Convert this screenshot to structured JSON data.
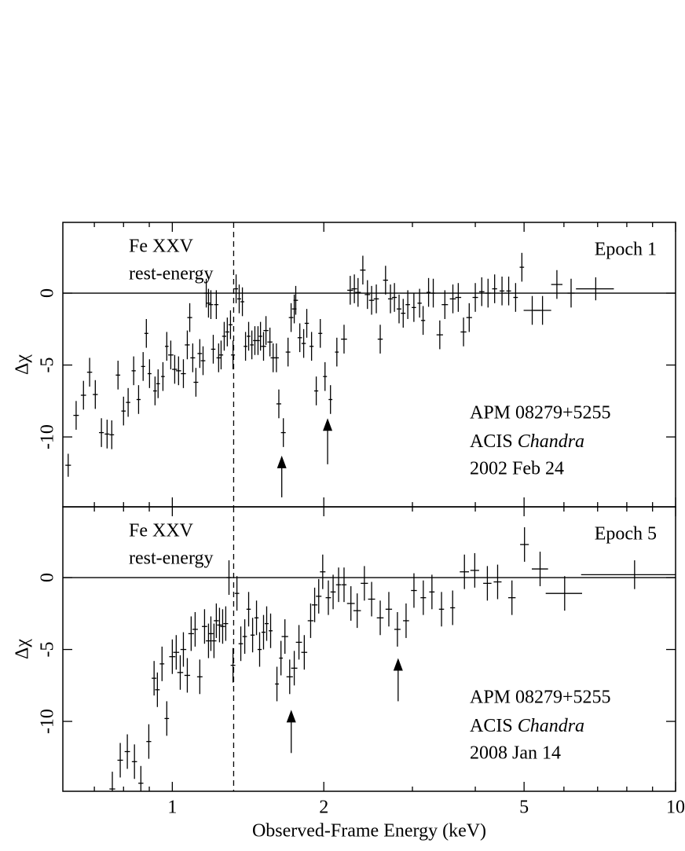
{
  "chart_data": [
    {
      "type": "errorbar",
      "ylabel": "Δχ",
      "xscale": "log",
      "xlim": [
        0.606,
        10
      ],
      "ylim": [
        -14.86,
        4.92
      ],
      "yticks": [
        -10,
        -5,
        0
      ],
      "color": "#000000",
      "fe_label": [
        "Fe XXV",
        "rest-energy"
      ],
      "vline": 1.324,
      "hline": 0,
      "epoch": "Epoch 1",
      "object": "APM 08279+5255",
      "instrument": "ACIS",
      "telescope": "Chandra",
      "date": "2002 Feb 24",
      "arrows": [
        {
          "x": 1.65,
          "tip": -11.3,
          "tail": -14.2
        },
        {
          "x": 2.035,
          "tip": -8.7,
          "tail": -11.9
        }
      ],
      "x": [
        0.621,
        0.644,
        0.666,
        0.685,
        0.703,
        0.723,
        0.742,
        0.758,
        0.78,
        0.8,
        0.817,
        0.838,
        0.857,
        0.875,
        0.888,
        0.901,
        0.924,
        0.937,
        0.958,
        0.975,
        0.993,
        1.011,
        1.029,
        1.052,
        1.071,
        1.083,
        1.098,
        1.114,
        1.134,
        1.151,
        1.168,
        1.18,
        1.193,
        1.206,
        1.223,
        1.236,
        1.25,
        1.268,
        1.286,
        1.305,
        1.32,
        1.339,
        1.358,
        1.378,
        1.398,
        1.418,
        1.439,
        1.459,
        1.48,
        1.497,
        1.518,
        1.535,
        1.563,
        1.586,
        1.61,
        1.628,
        1.662,
        1.698,
        1.722,
        1.747,
        1.759,
        1.792,
        1.824,
        1.85,
        1.891,
        1.932,
        1.968,
        2.011,
        2.062,
        2.123,
        2.194,
        2.257,
        2.3,
        2.339,
        2.391,
        2.442,
        2.489,
        2.543,
        2.589,
        2.653,
        2.713,
        2.763,
        2.822,
        2.876,
        2.937,
        3.02,
        3.1,
        3.15,
        3.23,
        3.3,
        3.4,
        3.48,
        3.61,
        3.7,
        3.79,
        3.89,
        4.0,
        4.12,
        4.24,
        4.37,
        4.52,
        4.66,
        4.81,
        4.95,
        5.19,
        5.44,
        5.81,
        6.2,
        6.94
      ],
      "values": [
        -11.97,
        -8.5,
        -7.1,
        -5.5,
        -7.05,
        -9.7,
        -9.8,
        -9.85,
        -5.7,
        -8.2,
        -7.6,
        -5.4,
        -7.4,
        -5.1,
        -2.8,
        -5.6,
        -6.8,
        -6.3,
        -5.8,
        -3.7,
        -4.3,
        -5.3,
        -5.4,
        -5.6,
        -3.6,
        -1.7,
        -4.5,
        -6.2,
        -4.2,
        -4.7,
        0.0,
        -0.7,
        -0.8,
        -3.9,
        -0.8,
        -4.5,
        -4.3,
        -3.0,
        -2.7,
        -2.2,
        -4.3,
        0.3,
        -0.4,
        -0.6,
        -3.7,
        -3.0,
        -3.6,
        -3.3,
        -3.3,
        -3.0,
        -3.7,
        -2.6,
        -3.4,
        -4.5,
        -4.5,
        -7.7,
        -9.7,
        -4.1,
        -1.7,
        -1.1,
        -0.5,
        -3.1,
        -3.5,
        -2.1,
        -3.7,
        -6.8,
        -2.8,
        -5.8,
        -7.4,
        -4.1,
        -3.2,
        0.2,
        0.3,
        0.05,
        1.6,
        -0.1,
        -0.5,
        -0.4,
        -3.2,
        0.9,
        -0.4,
        -0.3,
        -1.1,
        -1.4,
        -0.8,
        -1.0,
        -0.7,
        -1.9,
        0.05,
        0.0,
        -2.9,
        -0.8,
        -0.4,
        -0.3,
        -2.7,
        -1.7,
        -0.3,
        0.1,
        0.0,
        0.3,
        0.15,
        0.15,
        -0.3,
        1.8,
        -1.2,
        -1.2,
        0.6,
        0.0,
        0.3
      ],
      "xerr": [
        0.008,
        0.008,
        0.008,
        0.008,
        0.008,
        0.008,
        0.008,
        0.008,
        0.008,
        0.008,
        0.008,
        0.008,
        0.008,
        0.008,
        0.008,
        0.008,
        0.008,
        0.008,
        0.008,
        0.008,
        0.012,
        0.012,
        0.012,
        0.012,
        0.012,
        0.012,
        0.012,
        0.012,
        0.012,
        0.012,
        0.012,
        0.012,
        0.012,
        0.012,
        0.012,
        0.012,
        0.012,
        0.012,
        0.012,
        0.012,
        0.012,
        0.012,
        0.012,
        0.012,
        0.012,
        0.012,
        0.012,
        0.012,
        0.012,
        0.012,
        0.018,
        0.018,
        0.018,
        0.018,
        0.018,
        0.018,
        0.018,
        0.018,
        0.018,
        0.018,
        0.018,
        0.018,
        0.018,
        0.018,
        0.018,
        0.018,
        0.018,
        0.018,
        0.018,
        0.018,
        0.03,
        0.03,
        0.03,
        0.03,
        0.03,
        0.03,
        0.03,
        0.03,
        0.03,
        0.03,
        0.03,
        0.03,
        0.03,
        0.03,
        0.03,
        0.03,
        0.03,
        0.03,
        0.03,
        0.03,
        0.05,
        0.05,
        0.05,
        0.05,
        0.05,
        0.05,
        0.05,
        0.05,
        0.05,
        0.05,
        0.05,
        0.05,
        0.05,
        0.05,
        0.2,
        0.22,
        0.15,
        0.1,
        0.6
      ],
      "yerr": [
        0.8,
        1.0,
        1.0,
        1.0,
        1.0,
        1.0,
        1.0,
        1.0,
        1.0,
        1.0,
        1.0,
        1.0,
        1.0,
        1.0,
        1.0,
        1.0,
        1.0,
        1.0,
        1.0,
        1.0,
        1.0,
        1.0,
        1.0,
        1.0,
        1.0,
        1.0,
        1.0,
        1.0,
        1.0,
        1.0,
        1.0,
        1.0,
        1.0,
        1.0,
        1.0,
        1.0,
        1.0,
        1.0,
        1.0,
        1.0,
        1.0,
        1.0,
        1.0,
        1.0,
        1.0,
        1.0,
        1.0,
        1.0,
        1.0,
        1.0,
        1.0,
        1.0,
        1.0,
        1.0,
        1.0,
        1.0,
        1.0,
        1.0,
        1.0,
        1.0,
        1.0,
        1.0,
        1.0,
        1.0,
        1.0,
        1.0,
        1.0,
        1.0,
        1.0,
        1.0,
        1.0,
        1.0,
        1.0,
        1.0,
        1.0,
        1.0,
        1.0,
        1.0,
        1.0,
        1.0,
        1.0,
        1.0,
        1.0,
        1.0,
        1.0,
        1.0,
        1.0,
        1.0,
        1.0,
        1.0,
        1.0,
        1.0,
        1.0,
        1.0,
        1.0,
        1.0,
        1.0,
        1.0,
        1.0,
        1.0,
        1.0,
        1.0,
        1.0,
        1.0,
        1.0,
        1.0,
        1.0,
        1.0,
        0.8
      ]
    },
    {
      "type": "errorbar",
      "ylabel": "Δχ",
      "xlabel": "Observed-Frame Energy (keV)",
      "xscale": "log",
      "xlim": [
        0.606,
        10
      ],
      "ylim": [
        -14.86,
        4.92
      ],
      "yticks": [
        -10,
        -5,
        0
      ],
      "xticks": [
        1,
        2,
        5,
        10
      ],
      "xminorticks": [
        0.7,
        0.8,
        0.9,
        3,
        4,
        6,
        7,
        8,
        9
      ],
      "color": "#000000",
      "fe_label": [
        "Fe XXV",
        "rest-energy"
      ],
      "vline": 1.324,
      "hline": 0,
      "epoch": "Epoch 5",
      "object": "APM 08279+5255",
      "instrument": "ACIS",
      "telescope": "Chandra",
      "date": "2008 Jan 14",
      "arrows": [
        {
          "x": 1.723,
          "tip": -9.2,
          "tail": -12.2
        },
        {
          "x": 2.81,
          "tip": -5.6,
          "tail": -8.6
        }
      ],
      "x": [
        0.76,
        0.788,
        0.814,
        0.841,
        0.866,
        0.898,
        0.92,
        0.934,
        0.954,
        0.975,
        1.0,
        1.018,
        1.037,
        1.052,
        1.071,
        1.09,
        1.11,
        1.134,
        1.159,
        1.18,
        1.193,
        1.21,
        1.223,
        1.241,
        1.259,
        1.277,
        1.296,
        1.32,
        1.344,
        1.368,
        1.393,
        1.418,
        1.444,
        1.47,
        1.491,
        1.518,
        1.54,
        1.568,
        1.614,
        1.644,
        1.674,
        1.711,
        1.747,
        1.785,
        1.829,
        1.883,
        1.918,
        1.954,
        1.99,
        2.042,
        2.087,
        2.14,
        2.194,
        2.264,
        2.33,
        2.408,
        2.489,
        2.589,
        2.693,
        2.801,
        2.914,
        3.021,
        3.153,
        3.28,
        3.427,
        3.606,
        3.806,
        3.99,
        4.227,
        4.43,
        4.73,
        5.01,
        5.38,
        6.02,
        8.29
      ],
      "values": [
        -14.7,
        -12.7,
        -12.1,
        -12.8,
        -14.3,
        -11.4,
        -7.0,
        -7.8,
        -6.0,
        -9.8,
        -5.5,
        -5.2,
        -6.6,
        -5.0,
        -6.8,
        -3.9,
        -3.6,
        -6.9,
        -3.4,
        -4.4,
        -3.9,
        -4.4,
        -3.0,
        -3.3,
        -3.4,
        -3.2,
        0.0,
        -6.1,
        -1.1,
        -4.6,
        -4.1,
        -2.2,
        -4.0,
        -2.8,
        -5.0,
        -3.8,
        -3.2,
        -3.7,
        -7.4,
        -5.6,
        -4.1,
        -6.9,
        -6.3,
        -4.5,
        -5.2,
        -3.0,
        -1.9,
        -1.3,
        0.4,
        -1.4,
        -1.0,
        -0.5,
        -0.5,
        -1.8,
        -2.3,
        -0.4,
        -1.5,
        -2.8,
        -2.2,
        -3.6,
        -3.0,
        -0.9,
        -1.4,
        -1.0,
        -2.2,
        -2.1,
        0.4,
        0.5,
        -0.4,
        -0.3,
        -1.4,
        2.3,
        0.6,
        -1.1,
        0.2
      ],
      "xerr": [
        0.01,
        0.01,
        0.01,
        0.01,
        0.01,
        0.01,
        0.01,
        0.01,
        0.01,
        0.01,
        0.014,
        0.014,
        0.014,
        0.014,
        0.014,
        0.014,
        0.014,
        0.014,
        0.014,
        0.014,
        0.014,
        0.014,
        0.014,
        0.014,
        0.014,
        0.014,
        0.014,
        0.014,
        0.014,
        0.014,
        0.014,
        0.014,
        0.014,
        0.014,
        0.014,
        0.014,
        0.014,
        0.014,
        0.014,
        0.014,
        0.025,
        0.025,
        0.025,
        0.025,
        0.025,
        0.025,
        0.025,
        0.025,
        0.025,
        0.025,
        0.025,
        0.025,
        0.025,
        0.04,
        0.04,
        0.04,
        0.04,
        0.04,
        0.04,
        0.04,
        0.04,
        0.04,
        0.04,
        0.04,
        0.04,
        0.04,
        0.08,
        0.08,
        0.08,
        0.08,
        0.08,
        0.1,
        0.2,
        0.5,
        1.8
      ],
      "yerr": [
        1.2,
        1.2,
        1.2,
        1.2,
        1.2,
        1.2,
        1.2,
        1.2,
        1.2,
        1.2,
        1.2,
        1.2,
        1.2,
        1.2,
        1.2,
        1.2,
        1.2,
        1.2,
        1.2,
        1.2,
        1.2,
        1.2,
        1.2,
        1.2,
        1.2,
        1.2,
        1.2,
        1.2,
        1.2,
        1.2,
        1.2,
        1.2,
        1.2,
        1.2,
        1.2,
        1.2,
        1.2,
        1.2,
        1.2,
        1.2,
        1.2,
        1.2,
        1.2,
        1.2,
        1.2,
        1.2,
        1.2,
        1.2,
        1.2,
        1.2,
        1.2,
        1.2,
        1.2,
        1.2,
        1.2,
        1.2,
        1.2,
        1.2,
        1.2,
        1.2,
        1.2,
        1.2,
        1.2,
        1.2,
        1.2,
        1.2,
        1.2,
        1.2,
        1.2,
        1.2,
        1.2,
        1.2,
        1.2,
        1.2,
        1.0
      ]
    }
  ]
}
